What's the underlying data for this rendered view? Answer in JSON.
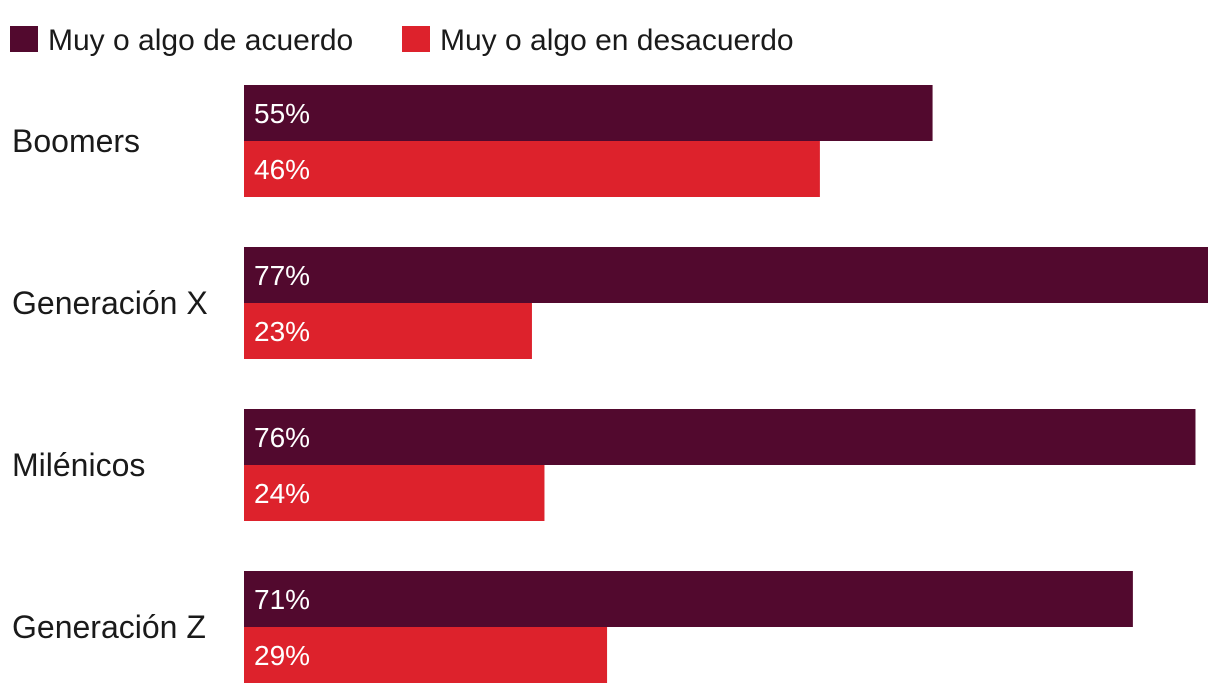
{
  "chart_data": {
    "type": "bar",
    "orientation": "horizontal",
    "categories": [
      "Boomers",
      "Generación X",
      "Milénicos",
      "Generación Z"
    ],
    "series": [
      {
        "name": "Muy o algo de acuerdo",
        "values": [
          55,
          77,
          76,
          71
        ],
        "labels": [
          "55%",
          "77%",
          "76%",
          "71%"
        ],
        "color": "#52092e"
      },
      {
        "name": "Muy o algo en desacuerdo",
        "values": [
          46,
          23,
          24,
          29
        ],
        "labels": [
          "46%",
          "23%",
          "24%",
          "29%"
        ],
        "color": "#dd222c"
      }
    ],
    "xlim": [
      0,
      77
    ],
    "legend_position": "top-left",
    "grid": false
  }
}
